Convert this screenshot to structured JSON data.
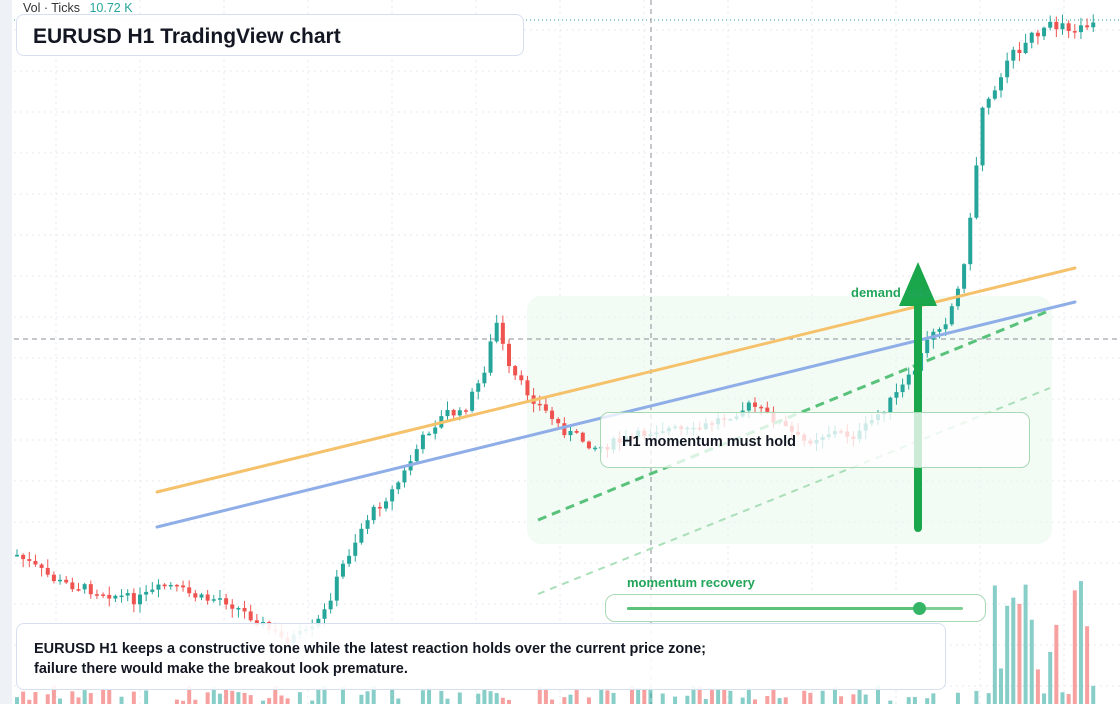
{
  "header": {
    "title": "EURUSD H1 TradingView chart",
    "volume_label": "Vol · Ticks",
    "volume_value": "10.72 K"
  },
  "annotations": {
    "hold_note": "H1 momentum must hold",
    "demand_label": "demand side",
    "momentum_label": "momentum recovery",
    "momentum_level": 0.87,
    "summary": "EURUSD H1 keeps a constructive tone while the latest reaction holds over the current price zone; failure there would make the breakout look premature."
  },
  "colors": {
    "bull": "#26a69a",
    "bear": "#ef5350",
    "orange_line": "#f5c26b",
    "blue_line": "#8faee8",
    "green_accent": "#1aa64a",
    "grid": "#e6e9ef"
  },
  "chart_data": {
    "type": "candlestick",
    "symbol": "EURUSD",
    "timeframe": "H1",
    "candle_count": 176,
    "last_volume": "10.72 K"
  }
}
